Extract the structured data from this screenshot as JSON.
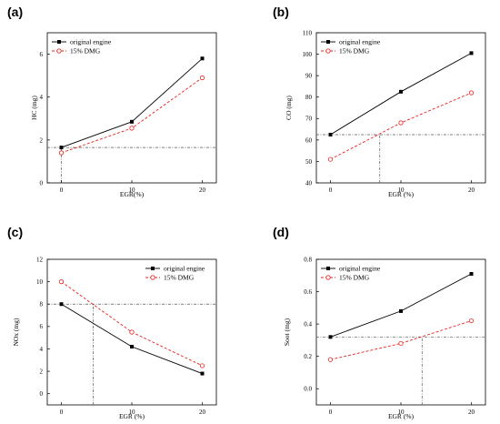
{
  "chart_data": [
    {
      "panel_label": "(a)",
      "type": "line",
      "x": [
        0,
        10,
        20
      ],
      "xticks": [
        "0",
        "10",
        "20"
      ],
      "xlim": [
        -2,
        22
      ],
      "ylim": [
        0,
        7
      ],
      "yticks": [
        "0",
        "2",
        "4",
        "6"
      ],
      "xlabel": "EGR(%)",
      "ylabel": "HC (mg)",
      "legend_position": "top-left",
      "series": [
        {
          "name": "original engine",
          "values": [
            1.65,
            2.85,
            5.8
          ],
          "color": "#000000",
          "style": "solid",
          "marker": "square"
        },
        {
          "name": "15% DMG",
          "values": [
            1.4,
            2.55,
            4.9
          ],
          "color": "#e8231e",
          "style": "dashed",
          "marker": "circle-open"
        }
      ],
      "reference_lines": [
        {
          "orientation": "horizontal",
          "value": 1.65
        },
        {
          "orientation": "vertical",
          "value": 0,
          "from": 0,
          "to": 1.65
        }
      ]
    },
    {
      "panel_label": "(b)",
      "type": "line",
      "x": [
        0,
        10,
        20
      ],
      "xticks": [
        "0",
        "10",
        "20"
      ],
      "xlim": [
        -2,
        22
      ],
      "ylim": [
        40,
        110
      ],
      "yticks": [
        "40",
        "50",
        "60",
        "70",
        "80",
        "90",
        "100",
        "110"
      ],
      "xlabel": "EGR (%)",
      "ylabel": "CO (mg)",
      "legend_position": "top-left",
      "series": [
        {
          "name": "original engine",
          "values": [
            62.5,
            82.5,
            100.5
          ],
          "color": "#000000",
          "style": "solid",
          "marker": "square"
        },
        {
          "name": "15% DMG",
          "values": [
            51,
            68,
            82
          ],
          "color": "#e8231e",
          "style": "dashed",
          "marker": "circle-open"
        }
      ],
      "reference_lines": [
        {
          "orientation": "horizontal",
          "value": 62.5
        },
        {
          "orientation": "vertical",
          "value": 7,
          "from": 40,
          "to": 62.5
        }
      ]
    },
    {
      "panel_label": "(c)",
      "type": "line",
      "x": [
        0,
        10,
        20
      ],
      "xticks": [
        "0",
        "10",
        "20"
      ],
      "xlim": [
        -2,
        22
      ],
      "ylim": [
        -1,
        12
      ],
      "yticks": [
        "0",
        "2",
        "4",
        "6",
        "8",
        "10",
        "12"
      ],
      "xlabel": "EGR (%)",
      "ylabel": "NOx (mg)",
      "legend_position": "top-right",
      "series": [
        {
          "name": "original engine",
          "values": [
            8.0,
            4.2,
            1.8
          ],
          "color": "#000000",
          "style": "solid",
          "marker": "square"
        },
        {
          "name": "15% DMG",
          "values": [
            10.0,
            5.5,
            2.5
          ],
          "color": "#e8231e",
          "style": "dashed",
          "marker": "circle-open"
        }
      ],
      "reference_lines": [
        {
          "orientation": "horizontal",
          "value": 8.0
        },
        {
          "orientation": "vertical",
          "value": 4.5,
          "from": -1,
          "to": 8.0
        }
      ]
    },
    {
      "panel_label": "(d)",
      "type": "line",
      "x": [
        0,
        10,
        20
      ],
      "xticks": [
        "0",
        "10",
        "20"
      ],
      "xlim": [
        -2,
        22
      ],
      "ylim": [
        -0.1,
        0.8
      ],
      "yticks": [
        "0.0",
        "0.2",
        "0.4",
        "0.6",
        "0.8"
      ],
      "xlabel": "EGR (%)",
      "ylabel": "Soot (mg)",
      "legend_position": "top-left",
      "series": [
        {
          "name": "original engine",
          "values": [
            0.32,
            0.48,
            0.71
          ],
          "color": "#000000",
          "style": "solid",
          "marker": "square"
        },
        {
          "name": "15% DMG",
          "values": [
            0.18,
            0.28,
            0.42
          ],
          "color": "#e8231e",
          "style": "dashed",
          "marker": "circle-open"
        }
      ],
      "reference_lines": [
        {
          "orientation": "horizontal",
          "value": 0.32
        },
        {
          "orientation": "vertical",
          "value": 13,
          "from": -0.1,
          "to": 0.32
        }
      ]
    }
  ]
}
